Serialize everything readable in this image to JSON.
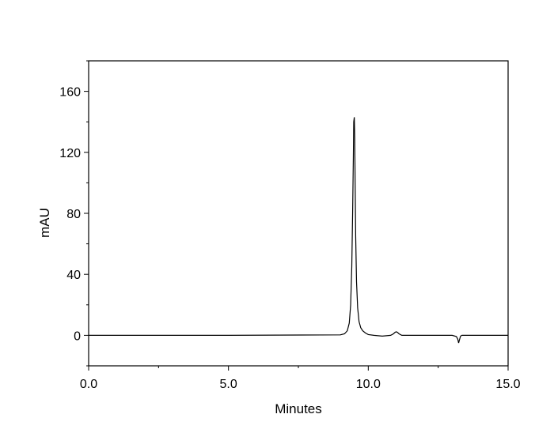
{
  "chart_data": {
    "type": "line",
    "title": "",
    "xlabel": "Minutes",
    "ylabel": "mAU",
    "xlim": [
      0.0,
      15.0
    ],
    "ylim": [
      -20,
      180
    ],
    "x_major_ticks": [
      0.0,
      5.0,
      10.0,
      15.0
    ],
    "x_tick_labels": [
      "0.0",
      "5.0",
      "10.0",
      "15.0"
    ],
    "x_minor_ticks": [
      2.5,
      7.5,
      12.5
    ],
    "y_major_ticks": [
      0,
      40,
      80,
      120,
      160
    ],
    "y_tick_labels": [
      "0",
      "40",
      "80",
      "120",
      "160"
    ],
    "y_minor_ticks": [
      -20,
      20,
      60,
      100,
      140,
      180
    ],
    "grid": false,
    "series": [
      {
        "x": [
          0.0,
          5.0,
          9.0,
          9.15,
          9.25,
          9.32,
          9.37,
          9.41,
          9.44,
          9.465,
          9.48,
          9.5,
          9.515,
          9.53,
          9.55,
          9.58,
          9.62,
          9.67,
          9.73,
          9.8,
          9.9,
          10.0,
          10.2,
          10.5,
          10.8,
          10.9,
          10.96,
          11.0,
          11.04,
          11.1,
          11.2,
          11.5,
          12.0,
          12.5,
          13.0,
          13.15,
          13.2,
          13.23,
          13.26,
          13.3,
          13.35,
          13.45,
          14.0,
          15.0
        ],
        "y": [
          0,
          0,
          0.3,
          1,
          3,
          8,
          20,
          45,
          80,
          115,
          140,
          143,
          130,
          100,
          65,
          35,
          18,
          9,
          5,
          3,
          1.5,
          0.5,
          0,
          -0.5,
          0,
          1,
          2,
          2.3,
          2,
          1,
          0,
          0,
          0,
          0,
          0,
          -0.8,
          -2.5,
          -5,
          -3,
          -0.5,
          0,
          0,
          0,
          0
        ]
      }
    ]
  }
}
